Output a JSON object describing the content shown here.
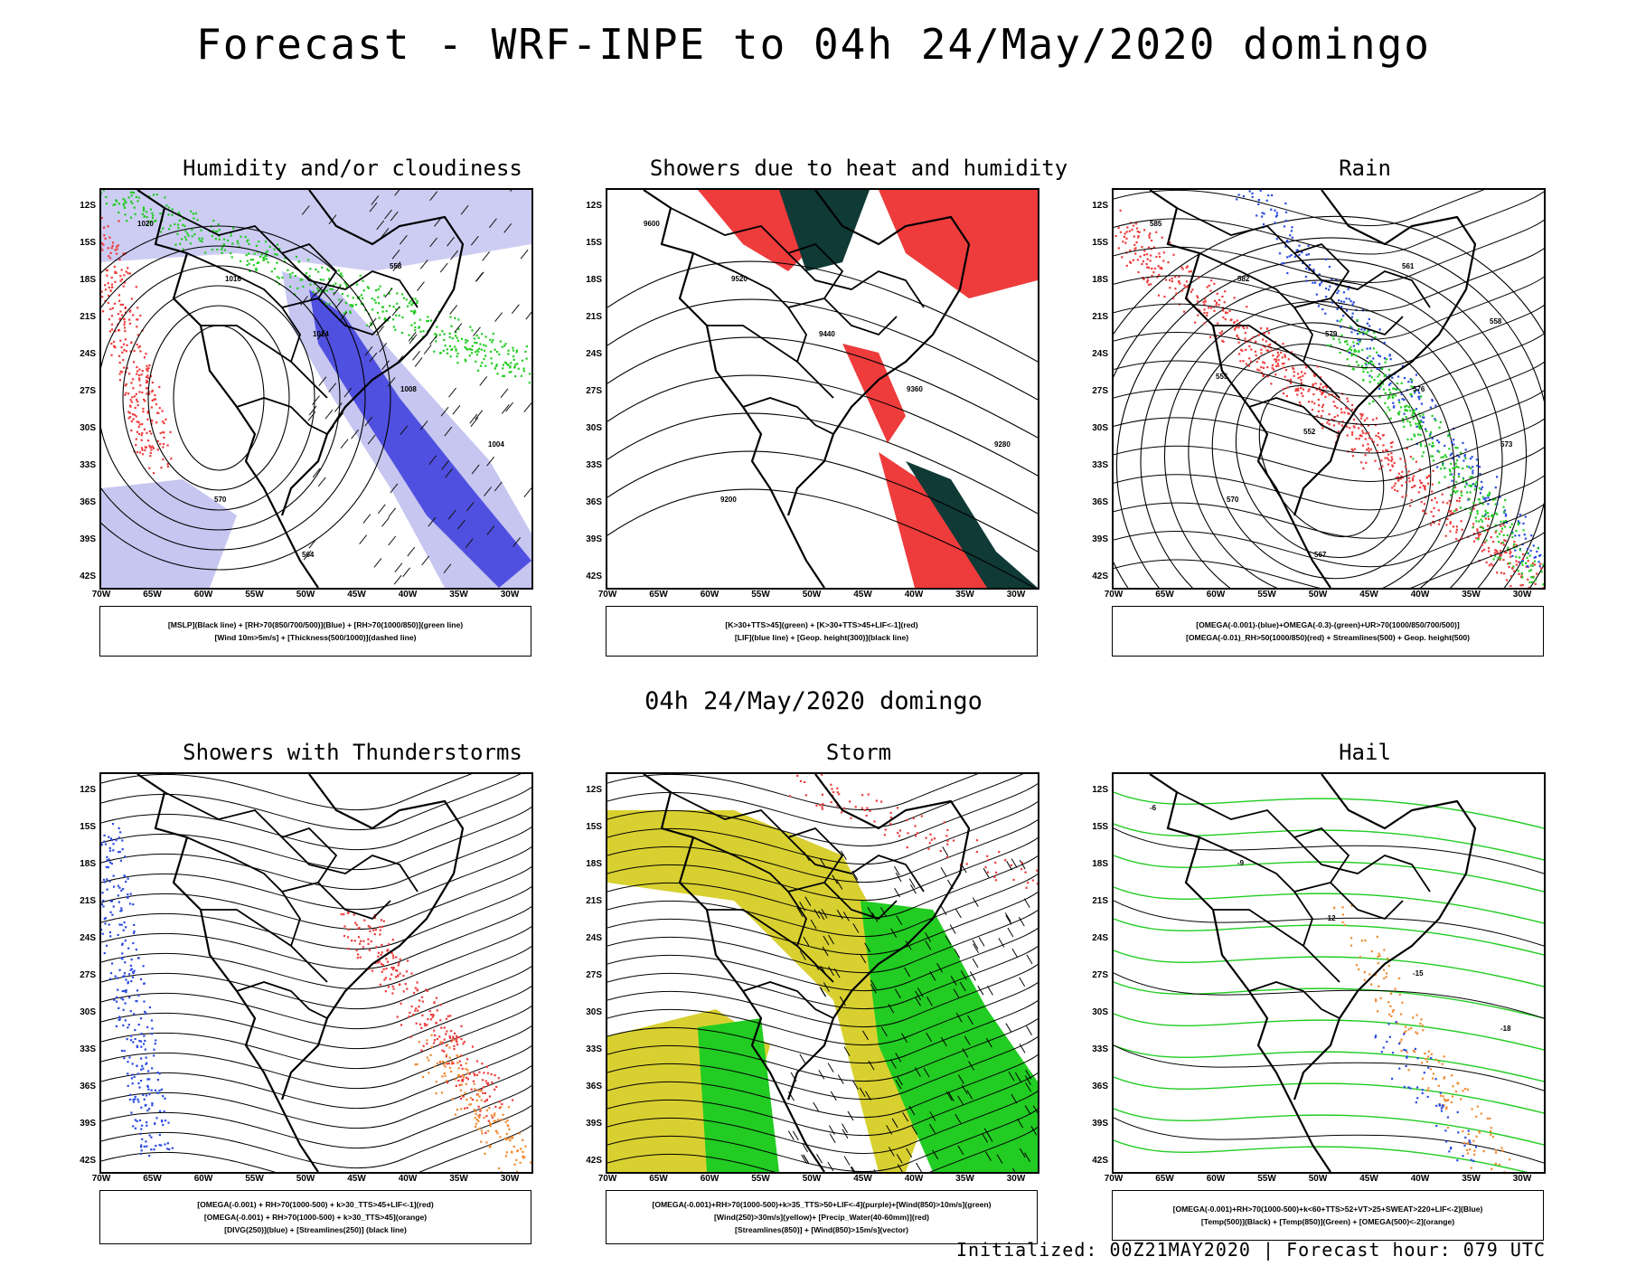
{
  "title": "Forecast - WRF-INPE to 04h 24/May/2020 domingo",
  "subtitle_mid": "04h 24/May/2020 domingo",
  "footer": "Initialized: 00Z21MAY2020 | Forecast hour: 079 UTC",
  "axes": {
    "lat_ticks": [
      "12S",
      "15S",
      "18S",
      "21S",
      "24S",
      "27S",
      "30S",
      "33S",
      "36S",
      "39S",
      "42S"
    ],
    "lon_ticks": [
      "70W",
      "65W",
      "60W",
      "55W",
      "50W",
      "45W",
      "40W",
      "35W",
      "30W"
    ]
  },
  "panels": [
    {
      "title": "Humidity and/or cloudiness",
      "legend": [
        "[MSLP](Black line) + [RH>70(850/700/500)](Blue) + [RH>70(1000/850)](green line)",
        "[Wind 10m>5m/s] + [Thickness(500/1000)](dashed line)"
      ],
      "contour_labels": [
        "1020",
        "1016",
        "1024",
        "1008",
        "1004",
        "570",
        "564",
        "558"
      ]
    },
    {
      "title": "Showers due to heat and humidity",
      "legend": [
        "[K>30+TTS>45](green) + [K>30+TTS>45+LIF<-1](red)",
        "[LIF](blue line) + [Geop. height(300)](black line)"
      ],
      "contour_labels": [
        "9600",
        "9520",
        "9440",
        "9360",
        "9280",
        "9200"
      ]
    },
    {
      "title": "Rain",
      "legend": [
        "[OMEGA(-0.001)-(blue)+OMEGA(-0.3)-(green)+UR>70(1000/850/700/500)]",
        "[OMEGA(-0.01)_RH>50(1000/850)(red) + Streamlines(500) + Geop. height(500)"
      ],
      "contour_labels": [
        "585",
        "582",
        "579",
        "576",
        "573",
        "570",
        "567",
        "561",
        "558",
        "555",
        "552"
      ]
    },
    {
      "title": "Showers with Thunderstorms",
      "legend": [
        "[OMEGA(-0.001) + RH>70(1000-500) + k>30_TTS>45+LIF<-1](red)",
        "[OMEGA(-0.001) + RH>70(1000-500) + k>30_TTS>45](orange)",
        "[DIVG(250)](blue) + [Streamlines(250)] (black line)"
      ],
      "contour_labels": []
    },
    {
      "title": "Storm",
      "legend": [
        "[OMEGA(-0.001)+RH>70(1000-500)+k>35_TTS>50+LIF<-4](purple)+[Wind(850)>10m/s](green)",
        "[Wind(250)>30m/s](yellow)+ [Precip_Water(40-60mm)](red)",
        "[Streamlines(850)] + [Wind(850)>15m/s](vector)"
      ],
      "contour_labels": []
    },
    {
      "title": "Hail",
      "legend": [
        "[OMEGA(-0.001)+RH>70(1000-500)+k<60+TTS>52+VT>25+SWEAT>220+LIF<-2](Blue)",
        "[Temp(500)](Black) + [Temp(850)](Green) + [OMEGA(500)<-2](orange)"
      ],
      "contour_labels": [
        "-6",
        "-9",
        "-12",
        "-15",
        "-18"
      ]
    }
  ],
  "colors": {
    "contour": "#000000",
    "blue_rh": "#5050e0",
    "light_blue_rh": "#c0c0f0",
    "green": "#22cc22",
    "red": "#ee3b3b",
    "dark_teal": "#0f3a36",
    "yellow": "#d8d030",
    "orange": "#f08a30",
    "blue_dots": "#2a4ae0"
  }
}
